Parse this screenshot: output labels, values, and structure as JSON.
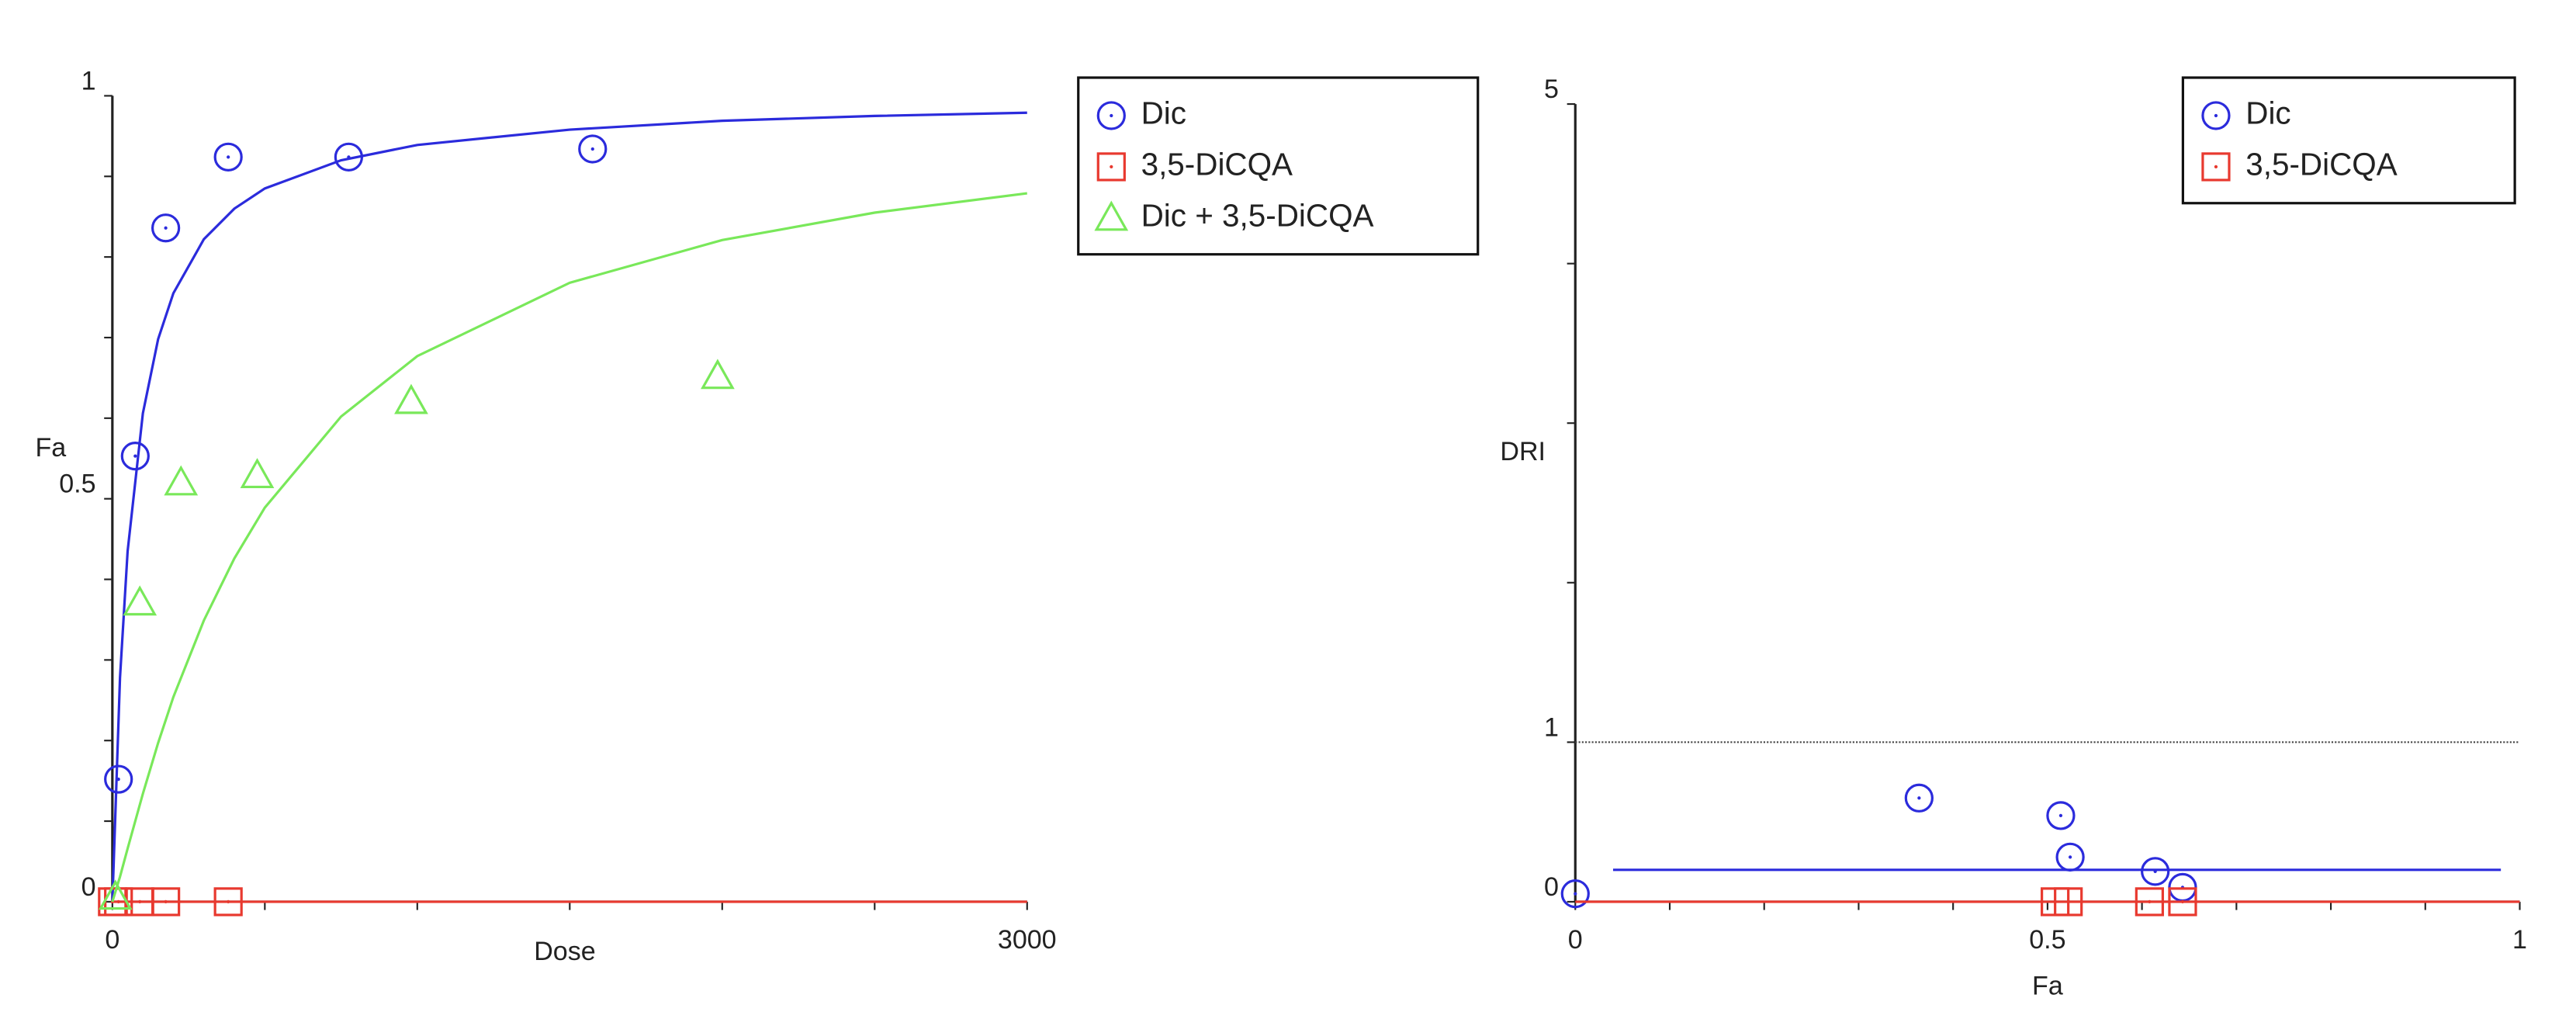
{
  "chart_data": [
    {
      "type": "scatter",
      "xlabel": "Dose",
      "ylabel": "Fa",
      "xlim": [
        0,
        3000
      ],
      "ylim": [
        0,
        1
      ],
      "xticks": [
        0,
        3000
      ],
      "xminorticks": [
        500,
        1000,
        1500,
        2000,
        2500
      ],
      "yticks": [
        0,
        0.5,
        1
      ],
      "yminorticks": [
        0.1,
        0.2,
        0.3,
        0.4,
        0.6,
        0.7,
        0.8,
        0.9
      ],
      "legend": "outside right",
      "fit_x": [
        0,
        25,
        50,
        100,
        150,
        200,
        300,
        400,
        500,
        750,
        1000,
        1500,
        2000,
        2500,
        3000
      ],
      "series": [
        {
          "name": "Dic",
          "color": "#2b2bdc",
          "marker": "circle",
          "x": [
            20,
            75,
            175,
            380,
            775,
            1575
          ],
          "values": [
            0.152,
            0.553,
            0.836,
            0.924,
            0.924,
            0.934
          ],
          "fit_values": [
            0,
            0.278,
            0.435,
            0.606,
            0.698,
            0.755,
            0.822,
            0.86,
            0.885,
            0.92,
            0.939,
            0.958,
            0.969,
            0.975,
            0.979
          ]
        },
        {
          "name": "3,5-DiCQA",
          "color": "#e8392f",
          "marker": "square",
          "x": [
            0,
            20,
            90,
            175,
            380
          ],
          "values": [
            0,
            0,
            0,
            0,
            0
          ],
          "fit_values": [
            0,
            0,
            0,
            0,
            0,
            0,
            0,
            0,
            0,
            0,
            0,
            0,
            0,
            0,
            0
          ]
        },
        {
          "name": "Dic + 3,5-DiCQA",
          "color": "#79e85a",
          "marker": "triangle",
          "x": [
            10,
            90,
            225,
            475,
            980,
            1985
          ],
          "values": [
            0.006,
            0.371,
            0.52,
            0.529,
            0.621,
            0.652
          ],
          "fit_values": [
            0,
            0.031,
            0.066,
            0.134,
            0.197,
            0.254,
            0.349,
            0.426,
            0.489,
            0.602,
            0.677,
            0.768,
            0.821,
            0.855,
            0.879
          ]
        }
      ]
    },
    {
      "type": "scatter",
      "xlabel": "Fa",
      "ylabel": "DRI",
      "xlim": [
        0,
        1
      ],
      "ylim": [
        0,
        5
      ],
      "xticks": [
        0,
        0.5,
        1
      ],
      "xminorticks": [
        0.1,
        0.2,
        0.3,
        0.4,
        0.6,
        0.7,
        0.8,
        0.9
      ],
      "yticks": [
        0,
        1,
        5
      ],
      "yminorticks": [
        2,
        3,
        4
      ],
      "reference_line": 1,
      "legend": "upper right",
      "series": [
        {
          "name": "Dic",
          "color": "#2b2bdc",
          "marker": "circle",
          "x": [
            0,
            0.364,
            0.514,
            0.524,
            0.614,
            0.643
          ],
          "values": [
            0.05,
            0.65,
            0.54,
            0.28,
            0.19,
            0.09
          ],
          "line_x": [
            0.04,
            0.98
          ],
          "line_values": [
            0.2,
            0.2
          ]
        },
        {
          "name": "3,5-DiCQA",
          "color": "#e8392f",
          "marker": "square",
          "x": [
            0.508,
            0.522,
            0.608,
            0.643
          ],
          "values": [
            0,
            0,
            0,
            0
          ],
          "line_x": [
            0,
            1
          ],
          "line_values": [
            0,
            0
          ]
        }
      ]
    }
  ]
}
